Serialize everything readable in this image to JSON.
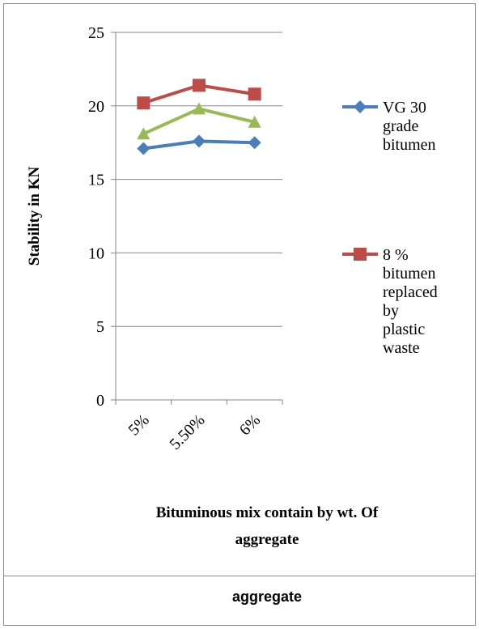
{
  "chart_data": {
    "type": "line",
    "categories": [
      "5%",
      "5.50%",
      "6%"
    ],
    "series": [
      {
        "name": "VG 30 grade bitumen",
        "values": [
          17.1,
          17.6,
          17.5
        ],
        "color": "#4a7ebb",
        "marker": "diamond"
      },
      {
        "name": "8 % bitumen replaced by plastic waste",
        "values": [
          20.2,
          21.4,
          20.8
        ],
        "color": "#be4b48",
        "marker": "square"
      },
      {
        "values": [
          18.1,
          19.8,
          18.9
        ],
        "color": "#98b954",
        "marker": "triangle"
      }
    ],
    "ylabel": "Stability in KN",
    "xlabel": "Bituminous mix contain by wt. Of aggregate",
    "ylim": [
      0,
      25
    ],
    "yticks": [
      0,
      5,
      10,
      15,
      20,
      25
    ],
    "grid": "horizontal",
    "legend_position": "right"
  },
  "legend_lines": [
    [
      "VG 30",
      "grade",
      "bitumen"
    ],
    [
      "8 %",
      "bitumen",
      "replaced",
      "by",
      "plastic",
      "waste"
    ]
  ],
  "xlabel_lines": [
    "Bituminous mix contain by wt. Of",
    "aggregate"
  ],
  "caption": "aggregate"
}
